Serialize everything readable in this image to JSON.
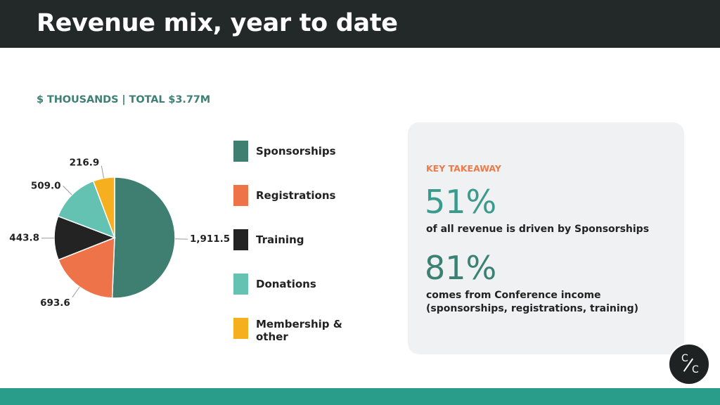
{
  "header": {
    "title": "Revenue mix, year to date"
  },
  "subtitle": "$ THOUSANDS | TOTAL $3.77M",
  "chart_data": {
    "type": "pie",
    "categories": [
      "Sponsorships",
      "Registrations",
      "Training",
      "Donations",
      "Membership & other"
    ],
    "values": [
      1911.5,
      693.6,
      443.8,
      509.0,
      216.9
    ],
    "data_labels": [
      "1,911.5",
      "693.6",
      "443.8",
      "509.0",
      "216.9"
    ],
    "colors": [
      "#3f7f72",
      "#ef7348",
      "#232323",
      "#63c2b1",
      "#f6b01f"
    ],
    "legend_placement": "right"
  },
  "takeaway": {
    "kicker": "KEY TAKEAWAY",
    "stat1_value": "51%",
    "stat1_desc": "of all revenue is driven by Sponsorships",
    "stat2_value": "81%",
    "stat2_desc": "comes from Conference income (sponsorships, registrations, training)"
  },
  "logo": {
    "icon": "cc-logo-icon",
    "top_letter": "C",
    "bottom_letter": "C"
  },
  "colors": {
    "header_bg": "#232929",
    "accent_teal": "#2a9c8a",
    "accent_orange": "#ee7a4a"
  }
}
